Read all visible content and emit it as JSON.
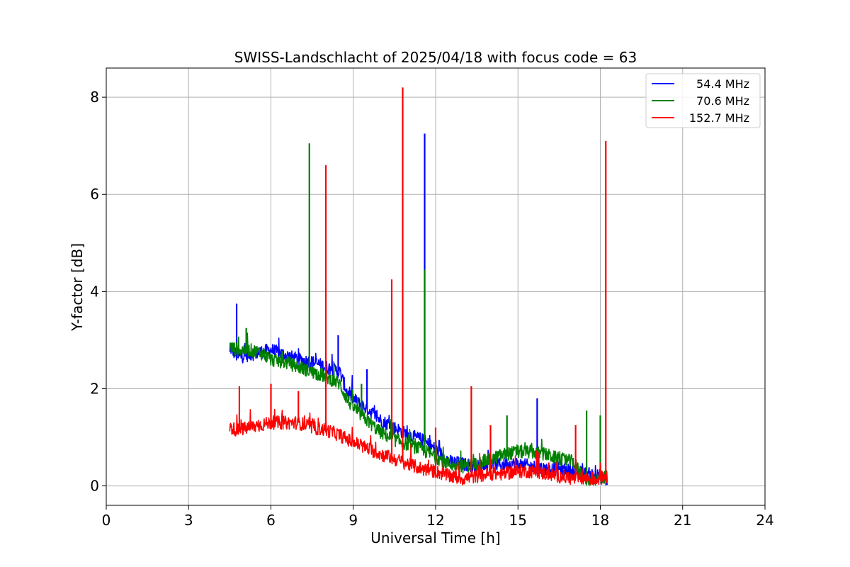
{
  "chart_data": {
    "type": "line",
    "title": "SWISS-Landschlacht of 2025/04/18 with focus code = 63",
    "xlabel": "Universal Time [h]",
    "ylabel": "Y-factor [dB]",
    "xlim": [
      0,
      24
    ],
    "ylim": [
      -0.4,
      8.6
    ],
    "xticks": [
      0,
      3,
      6,
      9,
      12,
      15,
      18,
      21,
      24
    ],
    "yticks": [
      0,
      2,
      4,
      6,
      8
    ],
    "grid": true,
    "legend_position": "top-right",
    "series": [
      {
        "name": "54.4 MHz",
        "color": "#0000ff",
        "points": [
          [
            4.5,
            2.85
          ],
          [
            4.8,
            2.65
          ],
          [
            5.2,
            2.7
          ],
          [
            5.6,
            2.75
          ],
          [
            6.0,
            2.8
          ],
          [
            6.5,
            2.7
          ],
          [
            7.0,
            2.6
          ],
          [
            7.5,
            2.55
          ],
          [
            8.0,
            2.45
          ],
          [
            8.5,
            2.35
          ],
          [
            8.8,
            1.9
          ],
          [
            9.2,
            1.7
          ],
          [
            9.6,
            1.55
          ],
          [
            10.0,
            1.35
          ],
          [
            10.5,
            1.2
          ],
          [
            11.0,
            1.05
          ],
          [
            11.5,
            0.95
          ],
          [
            12.0,
            0.75
          ],
          [
            12.5,
            0.5
          ],
          [
            13.0,
            0.45
          ],
          [
            13.5,
            0.4
          ],
          [
            14.0,
            0.45
          ],
          [
            14.5,
            0.45
          ],
          [
            15.0,
            0.45
          ],
          [
            15.5,
            0.4
          ],
          [
            16.0,
            0.35
          ],
          [
            16.5,
            0.35
          ],
          [
            17.0,
            0.3
          ],
          [
            17.5,
            0.25
          ],
          [
            18.0,
            0.2
          ],
          [
            18.25,
            0.1
          ]
        ],
        "spikes": [
          [
            4.75,
            3.75
          ],
          [
            8.45,
            3.1
          ],
          [
            9.5,
            2.4
          ],
          [
            11.6,
            7.25
          ],
          [
            15.7,
            1.8
          ]
        ]
      },
      {
        "name": "70.6 MHz",
        "color": "#008000",
        "points": [
          [
            4.5,
            2.85
          ],
          [
            4.8,
            2.8
          ],
          [
            5.2,
            2.8
          ],
          [
            5.6,
            2.75
          ],
          [
            6.0,
            2.6
          ],
          [
            6.5,
            2.55
          ],
          [
            7.0,
            2.45
          ],
          [
            7.5,
            2.35
          ],
          [
            8.0,
            2.25
          ],
          [
            8.5,
            2.1
          ],
          [
            8.8,
            1.75
          ],
          [
            9.2,
            1.5
          ],
          [
            9.6,
            1.3
          ],
          [
            10.0,
            1.1
          ],
          [
            10.5,
            0.95
          ],
          [
            11.0,
            0.85
          ],
          [
            11.5,
            0.75
          ],
          [
            12.0,
            0.6
          ],
          [
            12.5,
            0.45
          ],
          [
            13.0,
            0.4
          ],
          [
            13.5,
            0.45
          ],
          [
            14.0,
            0.55
          ],
          [
            14.5,
            0.65
          ],
          [
            15.0,
            0.7
          ],
          [
            15.5,
            0.7
          ],
          [
            16.0,
            0.65
          ],
          [
            16.5,
            0.55
          ],
          [
            17.0,
            0.5
          ],
          [
            17.5,
            0.1
          ],
          [
            18.0,
            0.15
          ],
          [
            18.25,
            0.2
          ]
        ],
        "spikes": [
          [
            5.1,
            3.25
          ],
          [
            7.4,
            7.05
          ],
          [
            9.3,
            2.1
          ],
          [
            11.6,
            4.45
          ],
          [
            14.6,
            1.45
          ],
          [
            17.5,
            1.55
          ],
          [
            18.0,
            1.45
          ]
        ]
      },
      {
        "name": "152.7 MHz",
        "color": "#ff0000",
        "points": [
          [
            4.5,
            1.2
          ],
          [
            4.8,
            1.15
          ],
          [
            5.2,
            1.2
          ],
          [
            5.6,
            1.25
          ],
          [
            6.0,
            1.3
          ],
          [
            6.5,
            1.3
          ],
          [
            7.0,
            1.3
          ],
          [
            7.5,
            1.2
          ],
          [
            8.0,
            1.15
          ],
          [
            8.5,
            1.05
          ],
          [
            8.8,
            0.95
          ],
          [
            9.2,
            0.85
          ],
          [
            9.6,
            0.75
          ],
          [
            10.0,
            0.65
          ],
          [
            10.5,
            0.55
          ],
          [
            11.0,
            0.45
          ],
          [
            11.5,
            0.35
          ],
          [
            12.0,
            0.3
          ],
          [
            12.5,
            0.2
          ],
          [
            13.0,
            0.15
          ],
          [
            13.5,
            0.2
          ],
          [
            14.0,
            0.25
          ],
          [
            14.5,
            0.25
          ],
          [
            15.0,
            0.3
          ],
          [
            15.5,
            0.3
          ],
          [
            16.0,
            0.25
          ],
          [
            16.5,
            0.2
          ],
          [
            17.0,
            0.15
          ],
          [
            17.5,
            0.15
          ],
          [
            18.0,
            0.15
          ],
          [
            18.25,
            0.2
          ]
        ],
        "spikes": [
          [
            4.85,
            2.05
          ],
          [
            6.0,
            2.1
          ],
          [
            7.0,
            1.95
          ],
          [
            8.0,
            6.6
          ],
          [
            10.4,
            4.25
          ],
          [
            10.8,
            8.2
          ],
          [
            12.0,
            1.2
          ],
          [
            13.3,
            2.05
          ],
          [
            14.0,
            1.25
          ],
          [
            17.1,
            1.25
          ],
          [
            18.2,
            7.1
          ]
        ]
      }
    ]
  }
}
